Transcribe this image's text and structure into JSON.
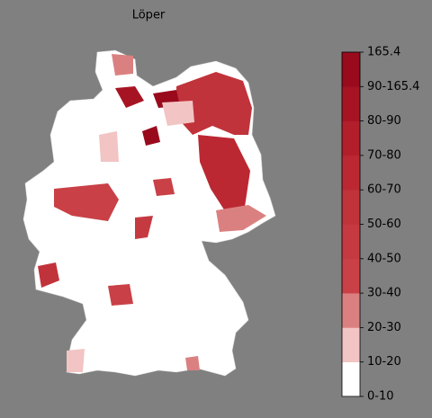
{
  "title": "Löper",
  "legend": {
    "labels": [
      "0-10",
      "10-20",
      "20-30",
      "30-40",
      "40-50",
      "50-60",
      "60-70",
      "70-80",
      "80-90",
      "90-165.4",
      "165.4"
    ],
    "colors": [
      "#ffffff",
      "#f2c4c4",
      "#db8080",
      "#c94046",
      "#c53a41",
      "#c1333a",
      "#bb2832",
      "#b31e2b",
      "#a61424",
      "#990a1d"
    ]
  }
}
